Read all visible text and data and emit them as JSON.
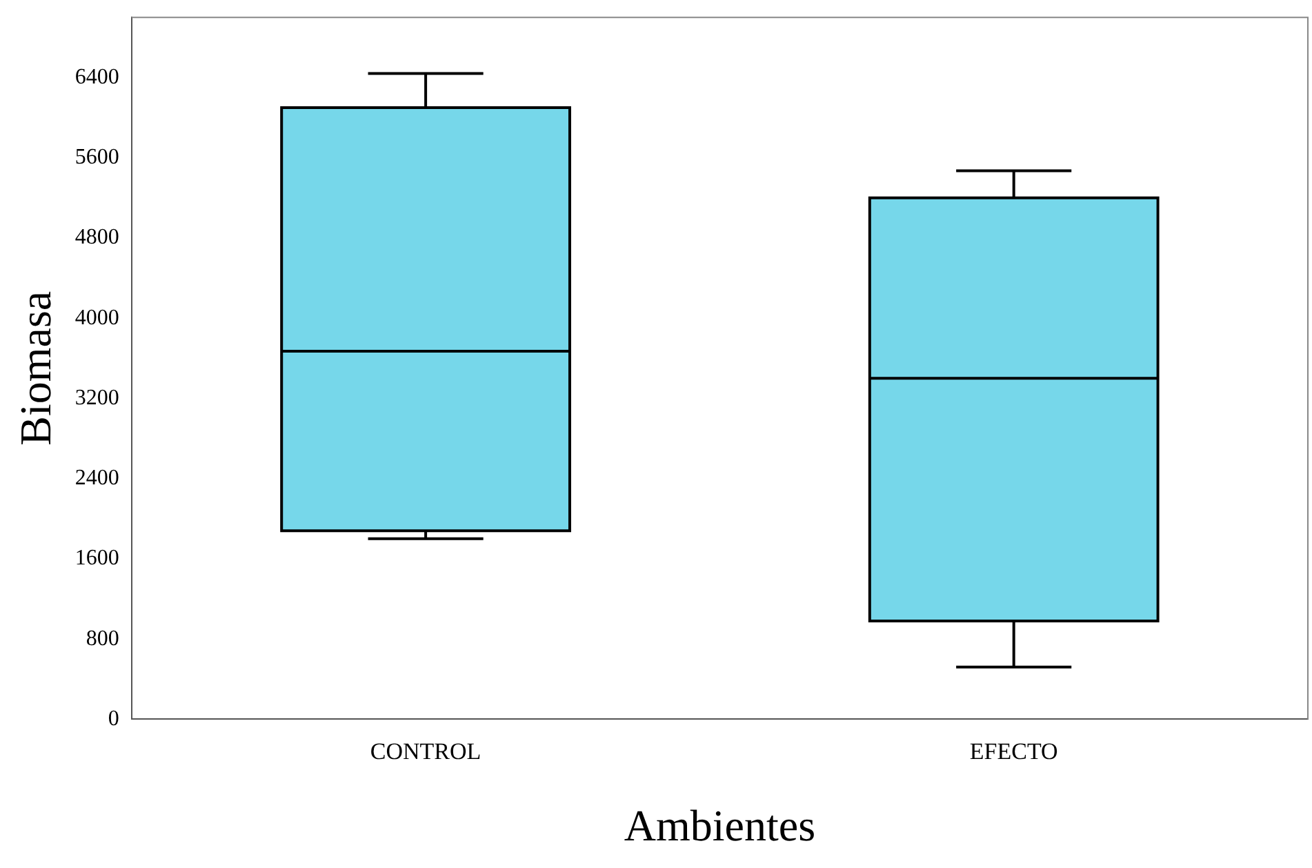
{
  "chart_data": {
    "type": "box",
    "xlabel": "Ambientes",
    "ylabel": "Biomasa",
    "categories": [
      "CONTROL",
      "EFECTO"
    ],
    "boxes": [
      {
        "low": 1800,
        "q1": 1880,
        "median": 3670,
        "q3": 6100,
        "high": 6440
      },
      {
        "low": 520,
        "q1": 980,
        "median": 3400,
        "q3": 5200,
        "high": 5470
      }
    ],
    "color": "#76d7ea",
    "ylim": [
      0,
      7000
    ],
    "yticks": [
      0,
      800,
      1600,
      2400,
      3200,
      4000,
      4800,
      5600,
      6400
    ]
  }
}
